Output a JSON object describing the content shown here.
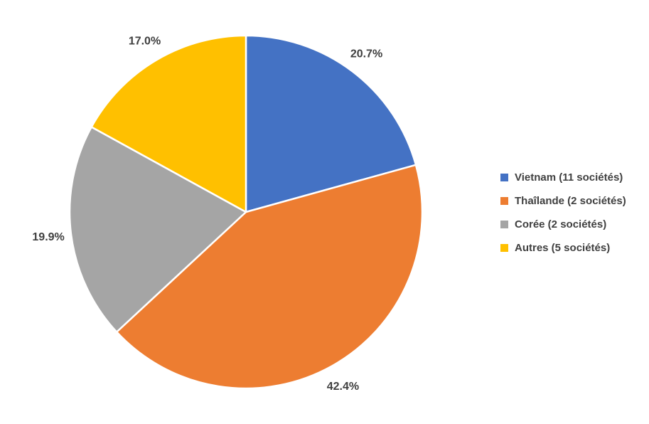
{
  "chart_data": {
    "type": "pie",
    "title": "",
    "start_angle_deg": 0,
    "direction": "clockwise",
    "legend_position": "right",
    "data_labels": "outside, percent with one decimal",
    "label_text_color": "#3F3F3F",
    "background_color": "#FFFFFF",
    "slice_border_color": "#FFFFFF",
    "slices": [
      {
        "key": "vietnam",
        "label": "Vietnam (11 sociétés)",
        "value": 20.7,
        "display": "20.7%",
        "color": "#4472C4"
      },
      {
        "key": "thailande",
        "label": "Thaîlande (2 sociétés)",
        "value": 42.4,
        "display": "42.4%",
        "color": "#ED7D31"
      },
      {
        "key": "coree",
        "label": "Corée (2 sociétés)",
        "value": 19.9,
        "display": "19.9%",
        "color": "#A5A5A5"
      },
      {
        "key": "autres",
        "label": "Autres (5 sociétés)",
        "value": 17.0,
        "display": "17.0%",
        "color": "#FFC000"
      }
    ]
  }
}
